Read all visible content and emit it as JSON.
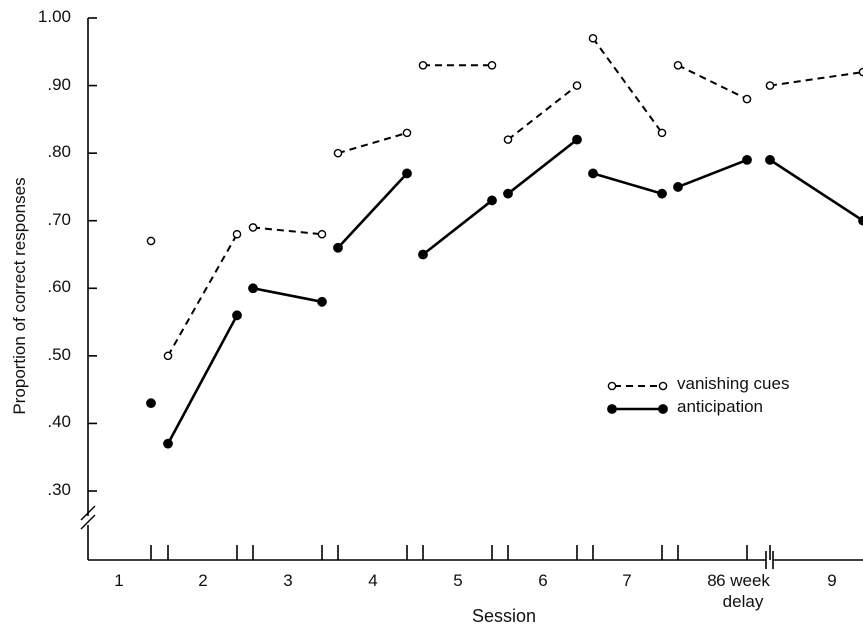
{
  "chart_data": {
    "type": "line",
    "xlabel": "Session",
    "ylabel": "Proportion of correct responses",
    "ylim": [
      0.25,
      1.0
    ],
    "y_ticks": [
      "1.00",
      ".90",
      ".80",
      ".70",
      ".60",
      ".50",
      ".40",
      ".30"
    ],
    "y_tick_values": [
      1.0,
      0.9,
      0.8,
      0.7,
      0.6,
      0.5,
      0.4,
      0.3
    ],
    "categories": [
      "1",
      "2",
      "3",
      "4",
      "5",
      "6",
      "7",
      "8",
      "9"
    ],
    "delay_label_line1": "6 week",
    "delay_label_line2": "delay",
    "axis_break": true,
    "legend_position": "right",
    "series": [
      {
        "name": "vanishing cues",
        "marker": "open-circle",
        "line": "dashed",
        "segments": [
          {
            "session": "1",
            "values": [
              0.67
            ]
          },
          {
            "session": "2",
            "values": [
              0.5,
              0.68
            ]
          },
          {
            "session": "3",
            "values": [
              0.69,
              0.68
            ]
          },
          {
            "session": "4",
            "values": [
              0.8,
              0.83
            ]
          },
          {
            "session": "5",
            "values": [
              0.93,
              0.93
            ]
          },
          {
            "session": "6",
            "values": [
              0.82,
              0.9
            ]
          },
          {
            "session": "7",
            "values": [
              0.97,
              0.83
            ]
          },
          {
            "session": "8",
            "values": [
              0.93,
              0.88
            ]
          },
          {
            "session": "9",
            "values": [
              0.9,
              0.92
            ]
          }
        ]
      },
      {
        "name": "anticipation",
        "marker": "filled-circle",
        "line": "solid",
        "segments": [
          {
            "session": "1",
            "values": [
              0.43
            ]
          },
          {
            "session": "2",
            "values": [
              0.37,
              0.56
            ]
          },
          {
            "session": "3",
            "values": [
              0.6,
              0.58
            ]
          },
          {
            "session": "4",
            "values": [
              0.66,
              0.77
            ]
          },
          {
            "session": "5",
            "values": [
              0.65,
              0.73
            ]
          },
          {
            "session": "6",
            "values": [
              0.74,
              0.82
            ]
          },
          {
            "session": "7",
            "values": [
              0.77,
              0.74
            ]
          },
          {
            "session": "8",
            "values": [
              0.75,
              0.79
            ]
          },
          {
            "session": "9",
            "values": [
              0.79,
              0.7
            ]
          }
        ]
      }
    ]
  }
}
